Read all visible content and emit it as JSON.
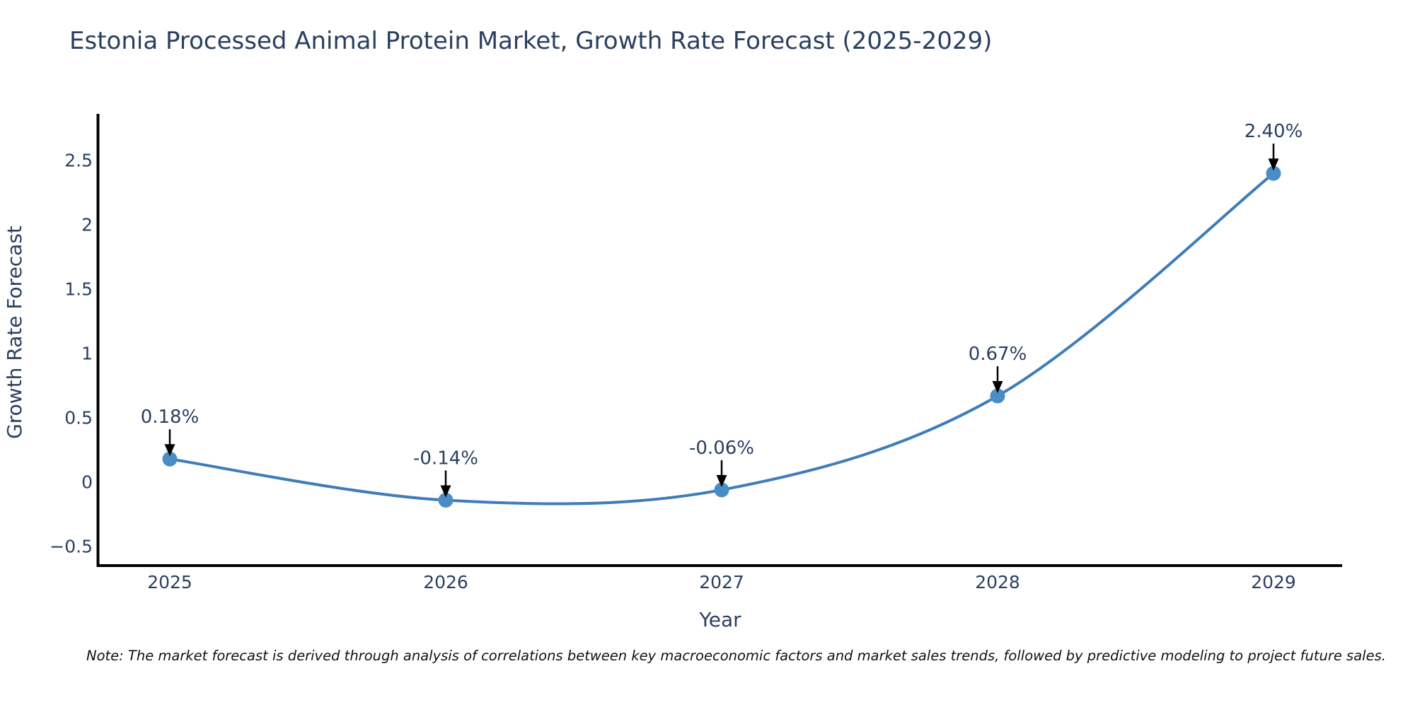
{
  "title": "Estonia Processed Animal Protein Market, Growth Rate Forecast (2025-2029)",
  "note": "Note: The market forecast is derived through analysis of correlations between key macroeconomic factors and market sales trends, followed by predictive modeling to project future sales.",
  "chart_data": {
    "type": "line",
    "title": "Estonia Processed Animal Protein Market, Growth Rate Forecast (2025-2029)",
    "x": [
      2025,
      2026,
      2027,
      2028,
      2029
    ],
    "categories": [
      "2025",
      "2026",
      "2027",
      "2028",
      "2029"
    ],
    "series": [
      {
        "name": "Growth Rate Forecast",
        "values": [
          0.18,
          -0.14,
          -0.06,
          0.67,
          2.4
        ]
      }
    ],
    "point_labels": [
      "0.18%",
      "-0.14%",
      "-0.06%",
      "0.67%",
      "2.40%"
    ],
    "xlabel": "Year",
    "ylabel": "Growth Rate Forecast",
    "y_ticks": [
      2.5,
      2,
      1.5,
      1,
      0.5,
      0,
      -0.5
    ],
    "y_tick_labels": [
      "2.5",
      "2",
      "1.5",
      "1",
      "0.5",
      "0",
      "−0.5"
    ],
    "ylim": [
      -0.85,
      2.87
    ],
    "grid": false,
    "legend_position": "none",
    "line_shape": "spline",
    "colors": {
      "line": "#3f7db8",
      "marker": "#4a8cc4",
      "axis": "#000000",
      "text": "#2a3f5f",
      "annotation_text": "#2a3f5f",
      "arrow": "#000000",
      "background": "#ffffff"
    }
  }
}
